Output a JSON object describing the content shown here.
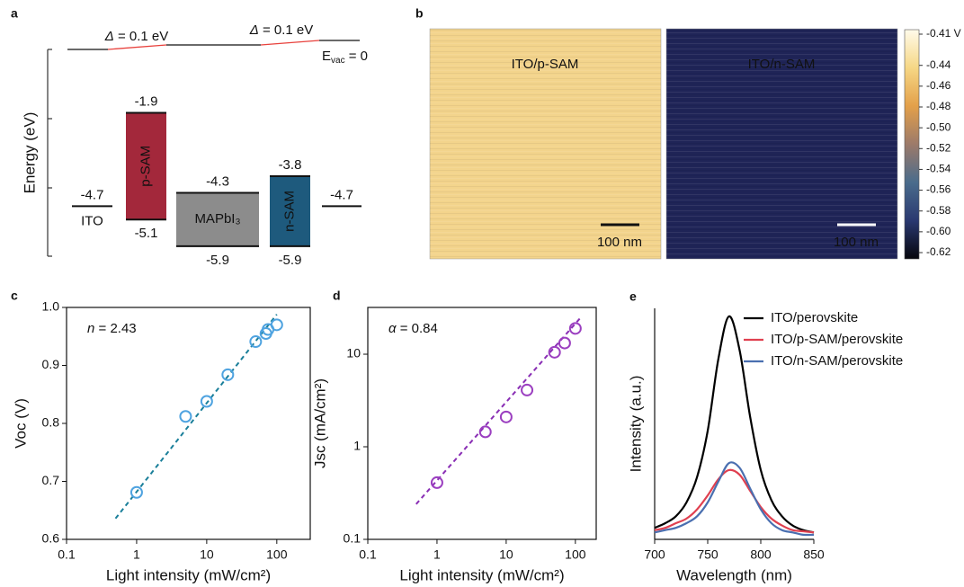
{
  "chart_data": [
    {
      "type": "energy-diagram",
      "panel": "a",
      "ylabel": "Energy (eV)",
      "ylim": [
        -6.2,
        0
      ],
      "vacuum_label": [
        "E",
        "vac",
        " = 0"
      ],
      "offset_labels": [
        [
          "Δ",
          " = 0.1 eV"
        ],
        [
          "Δ",
          " = 0.1 eV"
        ]
      ],
      "offset_color": "#e8413c",
      "layers": [
        {
          "name": "ITO",
          "values": [
            -4.7
          ]
        },
        {
          "name": "p-SAM",
          "values": [
            -1.9,
            -5.1
          ],
          "color": "#a3283b"
        },
        {
          "name": "MAPbI₃",
          "values": [
            -4.3,
            -5.9
          ],
          "color": "#8c8c8c"
        },
        {
          "name": "n-SAM",
          "values": [
            -3.8,
            -5.9
          ],
          "color": "#1e5a7d"
        },
        {
          "name": null,
          "values": [
            -4.7
          ]
        }
      ]
    },
    {
      "type": "image",
      "panel": "b",
      "images": [
        {
          "label": "ITO/p-SAM",
          "scalebar": "100 nm",
          "color": "#f3d48c"
        },
        {
          "label": "ITO/n-SAM",
          "scalebar": "100 nm",
          "color": "#1f2457"
        }
      ],
      "colorbar": {
        "colors": [
          "#fffbea",
          "#f6d785",
          "#e3a04a",
          "#9c7a6a",
          "#4a6c8c",
          "#2a3870",
          "#06060c"
        ],
        "ylim": [
          -0.62,
          -0.41
        ],
        "yticks": [
          {
            "value": -0.41,
            "label": "-0.41 V"
          },
          -0.44,
          -0.46,
          -0.48,
          {
            "value": -0.5,
            "label": "-0.50"
          },
          -0.52,
          -0.54,
          -0.56,
          -0.58,
          {
            "value": -0.6,
            "label": "-0.60"
          },
          -0.62
        ]
      }
    },
    {
      "type": "scatter",
      "panel": "c",
      "xlabel": "Light intensity (mW/cm²)",
      "ylabel": "Voc (V)",
      "annotation": [
        "n",
        " = 2.43"
      ],
      "log_x": true,
      "box": true,
      "xlim": [
        0.1,
        300
      ],
      "ylim": [
        0.6,
        1
      ],
      "xticks": [
        0.1,
        1,
        10,
        100
      ],
      "yticks": [
        0.6,
        0.7,
        0.8,
        0.9,
        {
          "value": 1,
          "label": "1.0"
        }
      ],
      "points": {
        "x": [
          1,
          5,
          10,
          20,
          50,
          70,
          75,
          100
        ],
        "values": [
          0.681,
          0.812,
          0.838,
          0.884,
          0.941,
          0.955,
          0.962,
          0.97
        ],
        "color": "#4fa3e0"
      },
      "fit": {
        "x": [
          0.5,
          100
        ],
        "values": [
          0.636,
          0.988
        ],
        "color": "#1a7f9a"
      }
    },
    {
      "type": "scatter",
      "panel": "d",
      "xlabel": "Light intensity (mW/cm²)",
      "ylabel": "Jsc (mA/cm²)",
      "annotation": [
        "α",
        " = 0.84"
      ],
      "log_x": true,
      "log_y": true,
      "box": true,
      "xlim": [
        0.1,
        200
      ],
      "ylim": [
        0.1,
        32
      ],
      "xticks": [
        0.1,
        1,
        10,
        100
      ],
      "yticks": [
        0.1,
        1,
        10
      ],
      "points": {
        "x": [
          1,
          5,
          10,
          20,
          50,
          70,
          100
        ],
        "values": [
          0.41,
          1.45,
          2.1,
          4.1,
          10.5,
          13.2,
          19
        ],
        "color": "#9b3fc0"
      },
      "fit": {
        "x": [
          0.5,
          120
        ],
        "values": [
          0.24,
          25
        ],
        "color": "#8a2fb5"
      }
    },
    {
      "type": "line",
      "panel": "e",
      "xlabel": "Wavelength (nm)",
      "ylabel": "Intensity (a.u.)",
      "box": false,
      "legend": "upper right",
      "xlim": [
        700,
        850
      ],
      "ylim": [
        0,
        1
      ],
      "xticks": [
        700,
        750,
        800,
        850
      ],
      "x": [
        700,
        710,
        720,
        730,
        740,
        750,
        760,
        770,
        780,
        790,
        800,
        810,
        820,
        830,
        840,
        850
      ],
      "series": [
        {
          "name": "ITO/perovskite",
          "color": "#000000",
          "values": [
            0.05,
            0.07,
            0.1,
            0.16,
            0.27,
            0.47,
            0.78,
            0.965,
            0.82,
            0.53,
            0.3,
            0.17,
            0.1,
            0.06,
            0.04,
            0.03
          ]
        },
        {
          "name": "ITO/p-SAM/perovskite",
          "color": "#e04050",
          "values": [
            0.04,
            0.05,
            0.07,
            0.09,
            0.13,
            0.19,
            0.26,
            0.3,
            0.28,
            0.21,
            0.14,
            0.09,
            0.06,
            0.04,
            0.035,
            0.03
          ]
        },
        {
          "name": "ITO/n-SAM/perovskite",
          "color": "#4a6fb0",
          "values": [
            0.03,
            0.04,
            0.05,
            0.07,
            0.1,
            0.16,
            0.25,
            0.33,
            0.31,
            0.22,
            0.13,
            0.07,
            0.04,
            0.03,
            0.02,
            0.02
          ]
        }
      ]
    }
  ]
}
